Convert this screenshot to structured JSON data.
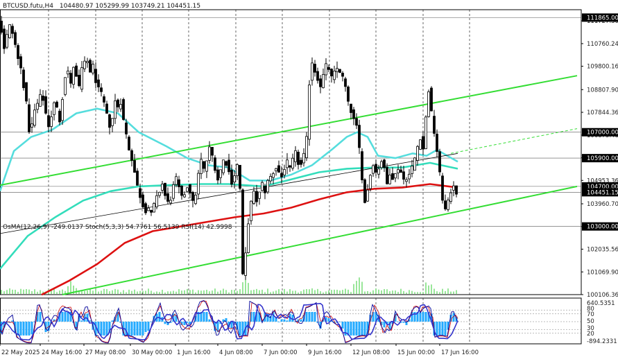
{
  "header": {
    "symbol": "BTCUSD.futu,H4",
    "ohlc": "104480.97 105299.99 103749.21 104451.15"
  },
  "oscillator_header": "OsMA(12,26,9) -249.0137  Stoch(5,3,3) 54.7761 56.5139  RSI(14) 42.9998",
  "colors": {
    "background": "#ffffff",
    "candle": "#000000",
    "grid": "#000000",
    "channel": "#33dd33",
    "ma_fast": "#55dddd",
    "ma_mid": "#33ddbb",
    "ma_slow": "#dd1111",
    "midline": "#000000",
    "osma_bar": "#22aaff",
    "stoch_main": "#000099",
    "stoch_signal": "#cc0000",
    "rsi": "#3333cc",
    "volume": "#33cc33",
    "badge_bg": "#000000",
    "badge_text": "#ffffff"
  },
  "chart_data": [
    {
      "type": "candlestick",
      "symbol": "BTCUSD.futu",
      "timeframe": "H4",
      "ylim": [
        100106.36,
        112200
      ],
      "price_axis_labels": [
        "111727.30",
        "110760.24",
        "109800.16",
        "108807.90",
        "107844.36",
        "106875.48",
        "105912.42",
        "104953.36",
        "103960.70",
        "102995.64",
        "102035.56",
        "101069.90",
        "100106.36"
      ],
      "level_badges": [
        {
          "label": "111865.00",
          "value": 111865
        },
        {
          "label": "107000.00",
          "value": 107000
        },
        {
          "label": "105900.00",
          "value": 105900
        },
        {
          "label": "104700.00",
          "value": 104700
        },
        {
          "label": "104451.15",
          "value": 104451.15
        },
        {
          "label": "103000.00",
          "value": 103000
        }
      ],
      "x_axis_labels": [
        "22 May 2025",
        "24 May 16:00",
        "27 May 08:00",
        "30 May 00:00",
        "1 Jun 16:00",
        "4 Jun 08:00",
        "7 Jun 00:00",
        "9 Jun 16:00",
        "12 Jun 08:00",
        "15 Jun 00:00",
        "17 Jun 16:00"
      ],
      "price_path": [
        [
          0,
          111600
        ],
        [
          4,
          111300
        ],
        [
          8,
          110600
        ],
        [
          12,
          111100
        ],
        [
          16,
          111500
        ],
        [
          20,
          111200
        ],
        [
          24,
          110700
        ],
        [
          28,
          110100
        ],
        [
          32,
          109700
        ],
        [
          36,
          109000
        ],
        [
          40,
          108200
        ],
        [
          44,
          107100
        ],
        [
          48,
          107300
        ],
        [
          52,
          107900
        ],
        [
          56,
          108200
        ],
        [
          60,
          108500
        ],
        [
          64,
          108400
        ],
        [
          68,
          107800
        ],
        [
          72,
          107300
        ],
        [
          76,
          107700
        ],
        [
          80,
          108200
        ],
        [
          84,
          108000
        ],
        [
          88,
          107500
        ],
        [
          92,
          108500
        ],
        [
          96,
          109400
        ],
        [
          100,
          109600
        ],
        [
          104,
          109000
        ],
        [
          108,
          109800
        ],
        [
          112,
          109300
        ],
        [
          116,
          108900
        ],
        [
          120,
          109700
        ],
        [
          124,
          109900
        ],
        [
          128,
          110000
        ],
        [
          132,
          109600
        ],
        [
          136,
          109800
        ],
        [
          140,
          109200
        ],
        [
          144,
          108800
        ],
        [
          148,
          108600
        ],
        [
          152,
          108200
        ],
        [
          156,
          107700
        ],
        [
          160,
          107300
        ],
        [
          164,
          107600
        ],
        [
          168,
          108300
        ],
        [
          172,
          108100
        ],
        [
          176,
          108300
        ],
        [
          180,
          107500
        ],
        [
          184,
          106900
        ],
        [
          188,
          106300
        ],
        [
          192,
          105900
        ],
        [
          196,
          105300
        ],
        [
          200,
          104700
        ],
        [
          204,
          104300
        ],
        [
          208,
          103900
        ],
        [
          212,
          103700
        ],
        [
          216,
          103800
        ],
        [
          220,
          103500
        ],
        [
          224,
          103900
        ],
        [
          228,
          104200
        ],
        [
          232,
          104500
        ],
        [
          236,
          104800
        ],
        [
          240,
          104300
        ],
        [
          244,
          104000
        ],
        [
          248,
          104200
        ],
        [
          252,
          104700
        ],
        [
          256,
          105000
        ],
        [
          260,
          104600
        ],
        [
          264,
          104200
        ],
        [
          268,
          104400
        ],
        [
          272,
          104700
        ],
        [
          276,
          104500
        ],
        [
          280,
          104000
        ],
        [
          284,
          104400
        ],
        [
          288,
          105200
        ],
        [
          292,
          105800
        ],
        [
          296,
          105400
        ],
        [
          300,
          105800
        ],
        [
          304,
          106300
        ],
        [
          308,
          106000
        ],
        [
          312,
          105500
        ],
        [
          316,
          105000
        ],
        [
          320,
          105400
        ],
        [
          324,
          105800
        ],
        [
          328,
          105700
        ],
        [
          332,
          105300
        ],
        [
          336,
          104900
        ],
        [
          340,
          105200
        ],
        [
          344,
          105600
        ],
        [
          348,
          104600
        ],
        [
          352,
          100900
        ],
        [
          356,
          101800
        ],
        [
          360,
          103200
        ],
        [
          364,
          104000
        ],
        [
          368,
          104400
        ],
        [
          372,
          104100
        ],
        [
          376,
          104400
        ],
        [
          380,
          104800
        ],
        [
          384,
          104500
        ],
        [
          388,
          104900
        ],
        [
          392,
          105100
        ],
        [
          396,
          105300
        ],
        [
          400,
          105500
        ],
        [
          404,
          105300
        ],
        [
          408,
          105100
        ],
        [
          412,
          105500
        ],
        [
          416,
          105700
        ],
        [
          420,
          105400
        ],
        [
          424,
          105800
        ],
        [
          428,
          106100
        ],
        [
          432,
          105700
        ],
        [
          436,
          105600
        ],
        [
          440,
          106000
        ],
        [
          444,
          106700
        ],
        [
          448,
          109100
        ],
        [
          452,
          110000
        ],
        [
          456,
          109600
        ],
        [
          460,
          109300
        ],
        [
          464,
          109000
        ],
        [
          468,
          109400
        ],
        [
          472,
          109800
        ],
        [
          476,
          109700
        ],
        [
          480,
          109300
        ],
        [
          484,
          109500
        ],
        [
          488,
          109700
        ],
        [
          492,
          109600
        ],
        [
          496,
          109300
        ],
        [
          500,
          108900
        ],
        [
          504,
          108200
        ],
        [
          508,
          107900
        ],
        [
          512,
          107500
        ],
        [
          516,
          107200
        ],
        [
          520,
          106300
        ],
        [
          524,
          105100
        ],
        [
          528,
          104000
        ],
        [
          532,
          104600
        ],
        [
          536,
          105200
        ],
        [
          540,
          105700
        ],
        [
          544,
          105300
        ],
        [
          548,
          105500
        ],
        [
          552,
          105800
        ],
        [
          556,
          105400
        ],
        [
          560,
          104800
        ],
        [
          564,
          105300
        ],
        [
          568,
          105100
        ],
        [
          572,
          105200
        ],
        [
          576,
          105500
        ],
        [
          580,
          105300
        ],
        [
          584,
          105000
        ],
        [
          588,
          105100
        ],
        [
          592,
          105200
        ],
        [
          596,
          105500
        ],
        [
          600,
          105900
        ],
        [
          604,
          106400
        ],
        [
          608,
          106800
        ],
        [
          612,
          106300
        ],
        [
          616,
          107600
        ],
        [
          620,
          108800
        ],
        [
          624,
          107800
        ],
        [
          628,
          107000
        ],
        [
          632,
          106200
        ],
        [
          636,
          105200
        ],
        [
          640,
          104200
        ],
        [
          644,
          103700
        ],
        [
          648,
          104000
        ],
        [
          652,
          104500
        ],
        [
          656,
          104800
        ],
        [
          660,
          104451
        ]
      ],
      "series": [
        {
          "kind": "ma",
          "color_key": "ma_fast",
          "points": [
            [
              0,
              104500
            ],
            [
              20,
              106200
            ],
            [
              45,
              106800
            ],
            [
              75,
              107100
            ],
            [
              110,
              107800
            ],
            [
              140,
              108000
            ],
            [
              170,
              107800
            ],
            [
              200,
              107000
            ],
            [
              240,
              106400
            ],
            [
              270,
              105900
            ],
            [
              300,
              105600
            ],
            [
              330,
              105500
            ],
            [
              360,
              104950
            ],
            [
              390,
              104950
            ],
            [
              420,
              105200
            ],
            [
              450,
              105600
            ],
            [
              480,
              106300
            ],
            [
              500,
              106800
            ],
            [
              515,
              107000
            ],
            [
              530,
              106800
            ],
            [
              545,
              106000
            ],
            [
              570,
              105900
            ],
            [
              595,
              106100
            ],
            [
              615,
              106000
            ],
            [
              630,
              106250
            ],
            [
              645,
              106000
            ],
            [
              660,
              105750
            ]
          ]
        },
        {
          "kind": "ma",
          "color_key": "ma_mid",
          "points": [
            [
              0,
              101200
            ],
            [
              40,
              102600
            ],
            [
              80,
              103400
            ],
            [
              120,
              104100
            ],
            [
              160,
              104500
            ],
            [
              200,
              104700
            ],
            [
              240,
              104750
            ],
            [
              290,
              104800
            ],
            [
              330,
              104800
            ],
            [
              380,
              104700
            ],
            [
              420,
              105000
            ],
            [
              460,
              105300
            ],
            [
              500,
              105450
            ],
            [
              540,
              105500
            ],
            [
              580,
              105500
            ],
            [
              620,
              105700
            ],
            [
              660,
              105450
            ]
          ]
        },
        {
          "kind": "ma",
          "color_key": "ma_slow",
          "points": [
            [
              60,
              100100
            ],
            [
              100,
              100700
            ],
            [
              140,
              101400
            ],
            [
              180,
              102300
            ],
            [
              220,
              102800
            ],
            [
              260,
              103000
            ],
            [
              300,
              103200
            ],
            [
              340,
              103400
            ],
            [
              380,
              103550
            ],
            [
              420,
              103800
            ],
            [
              460,
              104150
            ],
            [
              500,
              104450
            ],
            [
              540,
              104600
            ],
            [
              580,
              104650
            ],
            [
              620,
              104800
            ],
            [
              660,
              104650
            ]
          ]
        },
        {
          "kind": "channel",
          "color_key": "channel",
          "points": [
            [
              0,
              104750
            ],
            [
              832,
              109400
            ]
          ]
        },
        {
          "kind": "channel",
          "color_key": "channel",
          "points": [
            [
              90,
              100106
            ],
            [
              832,
              104700
            ]
          ]
        },
        {
          "kind": "channel_dashed",
          "color_key": "channel",
          "points": [
            [
              650,
              106100
            ],
            [
              832,
              107150
            ]
          ]
        },
        {
          "kind": "midline",
          "color_key": "midline",
          "points": [
            [
              0,
              102700
            ],
            [
              660,
              106100
            ]
          ]
        }
      ],
      "oscillator": {
        "labels": [
          "640.5351",
          "80",
          "70",
          "50",
          "30",
          "20",
          "-894.2331"
        ],
        "levels": [
          80,
          70,
          50,
          30,
          20
        ],
        "osma_params": "12,26,9",
        "stoch_params": "5,3,3",
        "rsi_period": 14,
        "osma_last": -249.0137,
        "stoch_main_last": 54.7761,
        "stoch_signal_last": 56.5139,
        "rsi_last": 42.9998
      }
    }
  ]
}
